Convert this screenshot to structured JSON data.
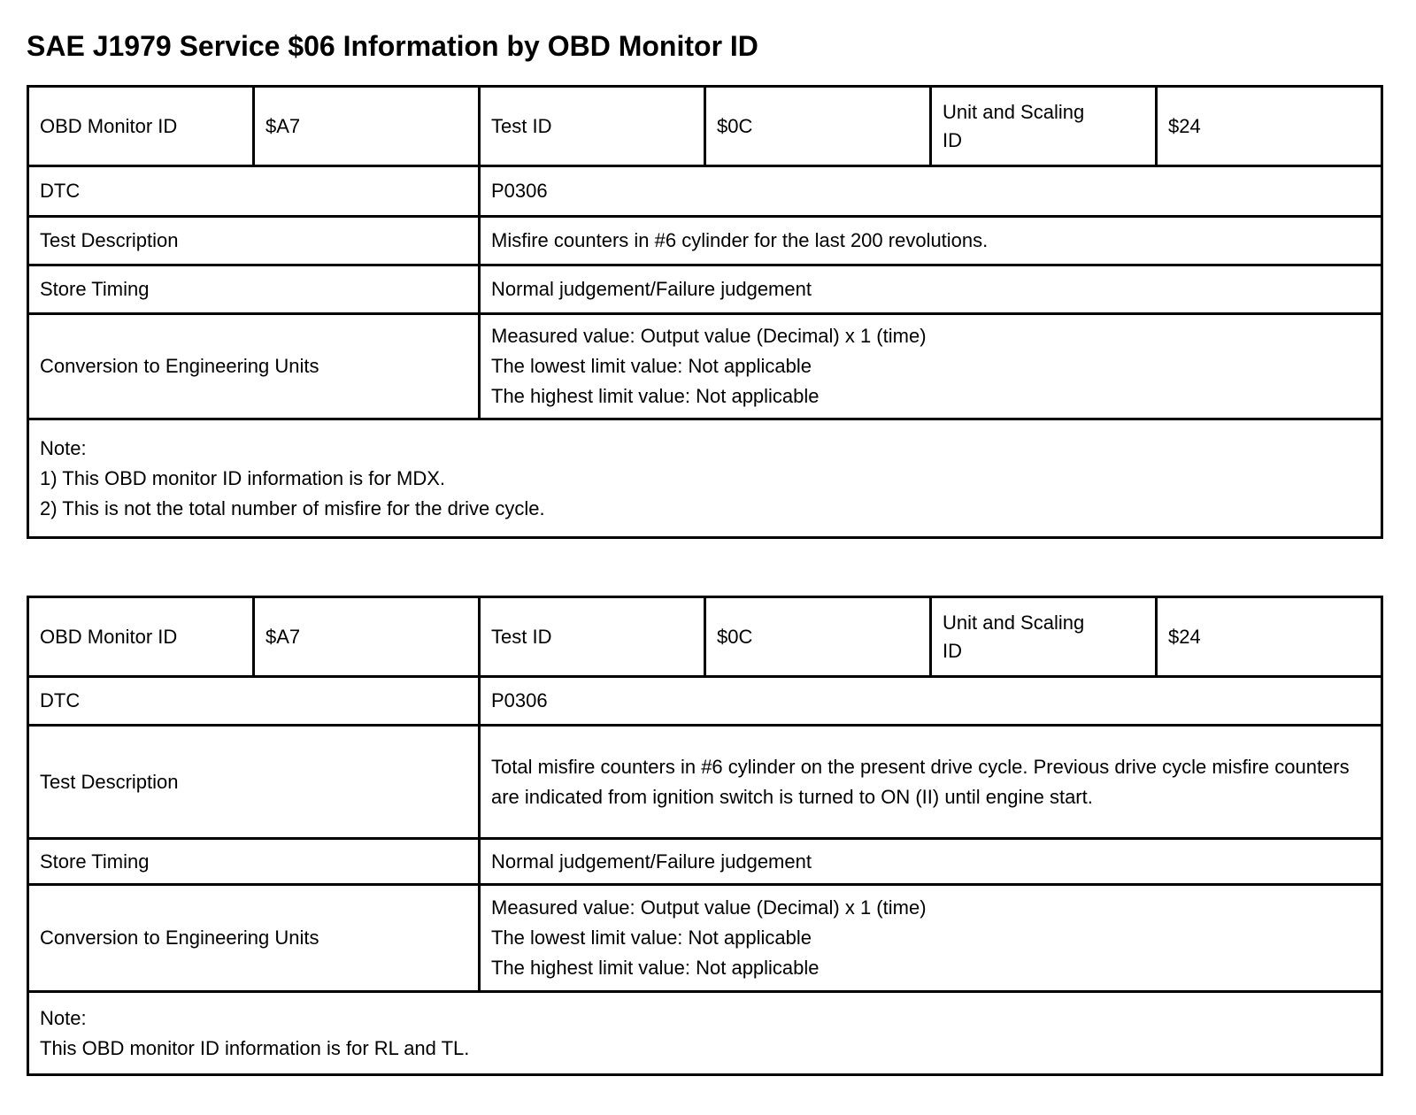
{
  "title": "SAE J1979 Service $06 Information by OBD Monitor ID",
  "colors": {
    "background": "#ffffff",
    "text": "#000000",
    "table_border": "#000000"
  },
  "tables": [
    {
      "header": {
        "obd_monitor_id_label": "OBD Monitor ID",
        "obd_monitor_id_value": "$A7",
        "test_id_label": "Test ID",
        "test_id_value": "$0C",
        "unit_scaling_label": "Unit and Scaling ID",
        "unit_scaling_value": "$24"
      },
      "dtc": {
        "label": "DTC",
        "value": "P0306"
      },
      "test_description": {
        "label": "Test Description",
        "value": "Misfire counters in #6 cylinder for the last 200 revolutions."
      },
      "store_timing": {
        "label": "Store Timing",
        "value": "Normal judgement/Failure judgement"
      },
      "conversion": {
        "label": "Conversion to Engineering Units",
        "lines": [
          "Measured value: Output value (Decimal) x 1 (time)",
          "The lowest limit value: Not applicable",
          "The highest limit value: Not applicable"
        ]
      },
      "note": {
        "lines": [
          "Note:",
          "1) This OBD monitor ID information is for MDX.",
          "2) This is not the total number of misfire for the drive cycle."
        ]
      }
    },
    {
      "header": {
        "obd_monitor_id_label": "OBD Monitor ID",
        "obd_monitor_id_value": "$A7",
        "test_id_label": "Test ID",
        "test_id_value": "$0C",
        "unit_scaling_label": "Unit and Scaling ID",
        "unit_scaling_value": "$24"
      },
      "dtc": {
        "label": "DTC",
        "value": "P0306"
      },
      "test_description": {
        "label": "Test Description",
        "value": "Total misfire counters in #6 cylinder on the present drive cycle. Previous drive cycle misfire counters are indicated from ignition switch is turned to ON (II) until engine start."
      },
      "store_timing": {
        "label": "Store Timing",
        "value": "Normal judgement/Failure judgement"
      },
      "conversion": {
        "label": "Conversion to Engineering Units",
        "lines": [
          "Measured value: Output value (Decimal) x 1 (time)",
          "The lowest limit value: Not applicable",
          "The highest limit value: Not applicable"
        ]
      },
      "note": {
        "lines": [
          "Note:",
          "This OBD monitor ID information is for RL and TL."
        ]
      }
    }
  ]
}
